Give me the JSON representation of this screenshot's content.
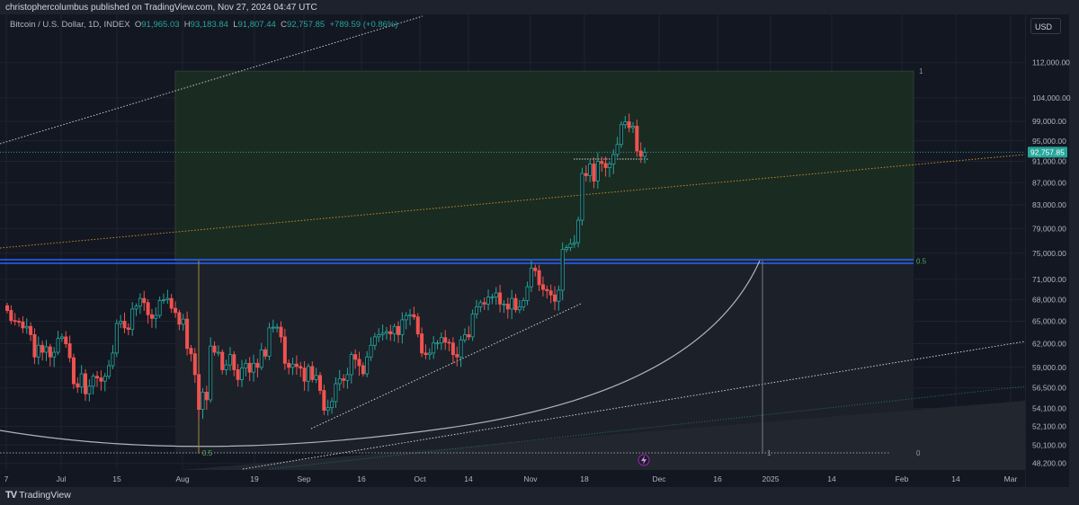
{
  "header": {
    "published": "christophercolumbus published on TradingView.com, Nov 27, 2024 04:47 UTC"
  },
  "legend": {
    "symbol": "Bitcoin / U.S. Dollar, 1D, INDEX",
    "o_label": "O",
    "o": "91,965.03",
    "h_label": "H",
    "h": "93,183.84",
    "l_label": "L",
    "l": "91,807.44",
    "c_label": "C",
    "c": "92,757.85",
    "change": "+789.59 (+0.86%)"
  },
  "currency": "USD",
  "footer": {
    "brand": "TradingView",
    "logo_icon": "tradingview-logo-icon"
  },
  "colors": {
    "up": "#26a69a",
    "down": "#ef5350",
    "bg": "#131722",
    "fib_zone": "#1a2b22",
    "blue_line": "#2962ff",
    "orange_line": "#c58a2a"
  },
  "chart_data": {
    "type": "candlestick",
    "scale": "log",
    "ylim": [
      47800,
      115000
    ],
    "start_date": "2024-06-17",
    "yticks": [
      "112,000.00",
      "104,000.00",
      "99,000.00",
      "95,000.00",
      "91,000.00",
      "87,000.00",
      "83,000.00",
      "79,000.00",
      "75,000.00",
      "71,000.00",
      "68,000.00",
      "65,000.00",
      "62,000.00",
      "59,000.00",
      "56,500.00",
      "54,100.00",
      "52,100.00",
      "50,100.00",
      "48,200.00"
    ],
    "ytick_values": [
      112000,
      104000,
      99000,
      95000,
      91000,
      87000,
      83000,
      79000,
      75000,
      71000,
      68000,
      65000,
      62000,
      59000,
      56500,
      54100,
      52100,
      50100,
      48200
    ],
    "xticks": [
      "7",
      "Jul",
      "15",
      "Aug",
      "19",
      "Sep",
      "16",
      "Oct",
      "14",
      "Nov",
      "18",
      "Dec",
      "16",
      "2025",
      "14",
      "Feb",
      "14",
      "Mar"
    ],
    "last_price_label": "92,757.85",
    "last_price": 92757.85,
    "fib_labels": {
      "top": "1",
      "mid": "0.5",
      "bottom": "0",
      "arc_mid": "0.5",
      "arc_end": "1"
    },
    "fib_levels": {
      "top": 110000,
      "mid": 73800,
      "bottom": 49300
    },
    "closes": [
      66500,
      65100,
      65000,
      64900,
      64100,
      64300,
      63200,
      60300,
      61800,
      60900,
      61600,
      60300,
      60900,
      62700,
      62900,
      62000,
      60200,
      57000,
      56600,
      58200,
      55800,
      56700,
      57900,
      57700,
      57300,
      57900,
      59200,
      60800,
      64700,
      65000,
      64100,
      63900,
      66700,
      67100,
      68200,
      67600,
      65900,
      65400,
      65800,
      67900,
      68000,
      68200,
      66800,
      66200,
      64600,
      65300,
      61400,
      60700,
      58100,
      54000,
      56000,
      55100,
      61700,
      60900,
      60900,
      58700,
      59300,
      60600,
      58700,
      57500,
      58900,
      59500,
      58400,
      59500,
      59000,
      61200,
      60400,
      64100,
      64200,
      64200,
      62900,
      59500,
      59000,
      59400,
      59100,
      58900,
      57300,
      59100,
      57500,
      58000,
      56200,
      53900,
      54200,
      54900,
      57000,
      57600,
      57400,
      58100,
      60600,
      60000,
      59200,
      58200,
      60300,
      61800,
      62900,
      63200,
      63400,
      63600,
      63300,
      64300,
      63200,
      65200,
      65800,
      65900,
      65600,
      63300,
      60800,
      60600,
      60800,
      62100,
      62100,
      62800,
      62200,
      62100,
      60600,
      60300,
      62500,
      63200,
      62900,
      66000,
      67000,
      67600,
      67400,
      68400,
      68400,
      69000,
      67400,
      67400,
      66700,
      68200,
      66600,
      67000,
      67900,
      69900,
      72700,
      72300,
      70200,
      69500,
      69300,
      68700,
      67800,
      69400,
      75600,
      75900,
      76500,
      76700,
      80400,
      88700,
      88300,
      90500,
      87300,
      91000,
      90600,
      89800,
      90500,
      92300,
      94300,
      98300,
      98900,
      97700,
      98000,
      93000,
      91965,
      92757.85
    ]
  }
}
